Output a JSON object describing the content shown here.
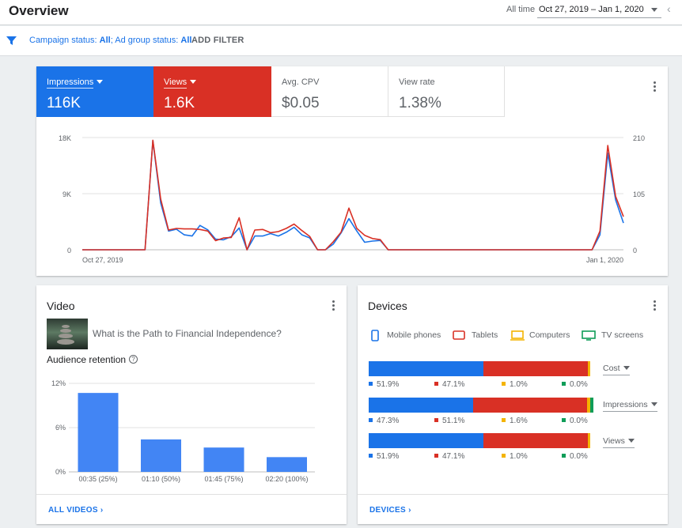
{
  "header": {
    "title": "Overview",
    "range_label": "All time",
    "range_value": "Oct 27, 2019 – Jan 1, 2020"
  },
  "filter": {
    "campaign_label": "Campaign status:",
    "campaign_value": "All",
    "adgroup_label": "; Ad group status:",
    "adgroup_value": "All",
    "add_filter": "ADD FILTER"
  },
  "metrics": [
    {
      "label": "Impressions",
      "value": "116K",
      "selected": true,
      "color": "#1a73e8"
    },
    {
      "label": "Views",
      "value": "1.6K",
      "selected": true,
      "color": "#d93025"
    },
    {
      "label": "Avg. CPV",
      "value": "$0.05",
      "selected": false
    },
    {
      "label": "View rate",
      "value": "1.38%",
      "selected": false
    }
  ],
  "colors": {
    "blue": "#1a73e8",
    "red": "#d93025",
    "yellow": "#f4b400",
    "green": "#0f9d58"
  },
  "chart_data": [
    {
      "type": "line",
      "x_labels": [
        "Oct 27, 2019",
        "Jan 1, 2020"
      ],
      "y_left_ticks": [
        "18K",
        "9K",
        "0"
      ],
      "y_right_ticks": [
        "210",
        "105",
        "0"
      ],
      "ylim_left": [
        0,
        18000
      ],
      "ylim_right": [
        0,
        210
      ],
      "grid": true,
      "series": [
        {
          "axis": "left",
          "color": "#1a73e8",
          "values": [
            0,
            0,
            0,
            0,
            0,
            0,
            0,
            0,
            0,
            17500,
            7500,
            3000,
            3300,
            2400,
            2200,
            3900,
            3200,
            1700,
            1600,
            2100,
            3500,
            0,
            2200,
            2200,
            2600,
            2200,
            2800,
            3600,
            2400,
            1900,
            0,
            0,
            900,
            2700,
            5000,
            3000,
            1200,
            1400,
            1500,
            0,
            0,
            0,
            0,
            0,
            0,
            0,
            0,
            0,
            0,
            0,
            0,
            0,
            0,
            0,
            0,
            0,
            0,
            0,
            0,
            0,
            0,
            0,
            0,
            0,
            0,
            0,
            2400,
            15500,
            8000,
            4300
          ]
        },
        {
          "axis": "right",
          "color": "#d93025",
          "values": [
            0,
            0,
            0,
            0,
            0,
            0,
            0,
            0,
            0,
            205,
            95,
            37,
            40,
            39,
            39,
            38,
            35,
            17,
            22,
            23,
            60,
            0,
            37,
            38,
            32,
            34,
            40,
            48,
            36,
            25,
            0,
            0,
            15,
            33,
            78,
            40,
            27,
            21,
            19,
            0,
            0,
            0,
            0,
            0,
            0,
            0,
            0,
            0,
            0,
            0,
            0,
            0,
            0,
            0,
            0,
            0,
            0,
            0,
            0,
            0,
            0,
            0,
            0,
            0,
            0,
            0,
            35,
            195,
            100,
            62
          ]
        }
      ]
    },
    {
      "type": "bar",
      "categories": [
        "00:35 (25%)",
        "01:10 (50%)",
        "01:45 (75%)",
        "02:20 (100%)"
      ],
      "values": [
        10.7,
        4.4,
        3.3,
        2.0
      ],
      "y_ticks": [
        "12%",
        "6%",
        "0%"
      ],
      "ylim": [
        0,
        12
      ],
      "grid": true
    },
    {
      "type": "bar",
      "stacked": true,
      "categories": [
        "Mobile phones",
        "Tablets",
        "Computers",
        "TV screens"
      ],
      "series": [
        {
          "values": [
            51.9,
            47.1,
            1.0,
            0.0
          ]
        },
        {
          "values": [
            47.3,
            51.1,
            1.6,
            0.0
          ]
        },
        {
          "values": [
            51.9,
            47.1,
            1.0,
            0.0
          ]
        }
      ]
    }
  ],
  "video": {
    "title": "Video",
    "video_name": "What is the Path to Financial Independence?",
    "retention_label": "Audience retention",
    "footer_link": "ALL VIDEOS"
  },
  "devices": {
    "title": "Devices",
    "legend": [
      "Mobile phones",
      "Tablets",
      "Computers",
      "TV screens"
    ],
    "rows": [
      {
        "selector": "Cost",
        "pcts": [
          "51.9%",
          "47.1%",
          "1.0%",
          "0.0%"
        ]
      },
      {
        "selector": "Impressions",
        "pcts": [
          "47.3%",
          "51.1%",
          "1.6%",
          "0.0%"
        ]
      },
      {
        "selector": "Views",
        "pcts": [
          "51.9%",
          "47.1%",
          "1.0%",
          "0.0%"
        ]
      }
    ],
    "footer_link": "DEVICES"
  }
}
